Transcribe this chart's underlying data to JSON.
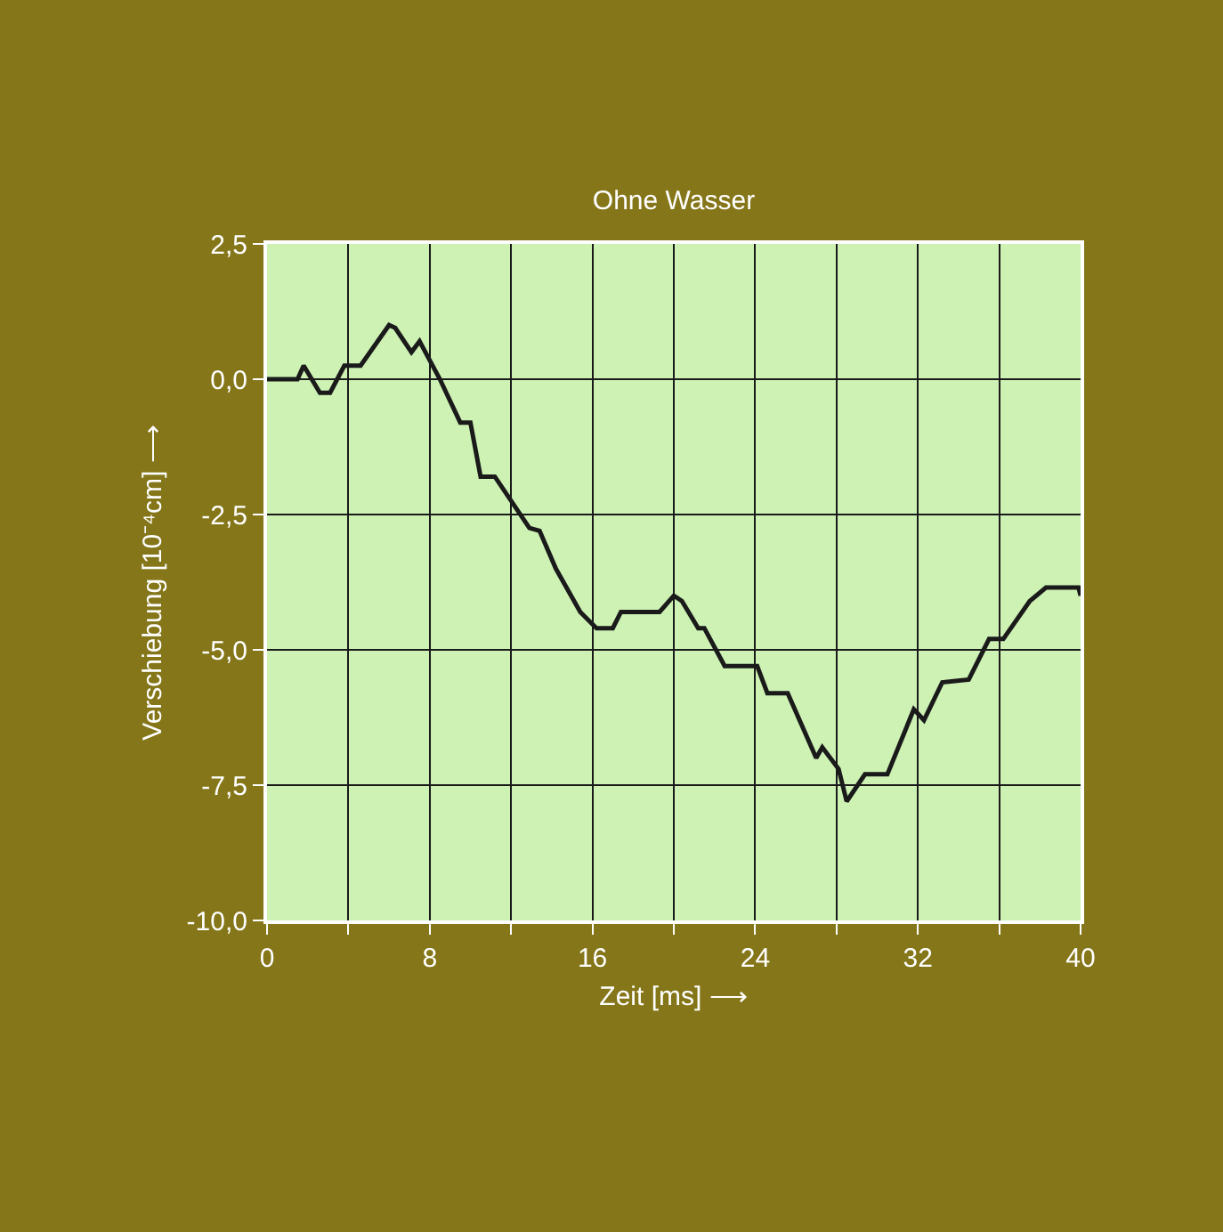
{
  "chart_data": {
    "type": "line",
    "title": "Ohne Wasser",
    "xlabel": "Zeit [ms] ⟶",
    "ylabel": "Verschiebung [10⁻⁴cm] ⟶",
    "x": [
      0,
      1.5,
      1.8,
      2.6,
      3.1,
      3.8,
      4.6,
      6.0,
      6.3,
      7.1,
      7.5,
      8.5,
      9.5,
      10.0,
      10.5,
      11.2,
      12.9,
      13.4,
      14.2,
      15.4,
      16.2,
      17.0,
      17.4,
      19.3,
      20.0,
      20.4,
      21.2,
      21.5,
      22.5,
      24.1,
      24.6,
      25.6,
      27.0,
      27.3,
      28.1,
      28.5,
      29.4,
      30.5,
      31.8,
      32.3,
      33.2,
      34.5,
      35.5,
      36.2,
      37.5,
      38.3,
      39.9,
      40
    ],
    "series": [
      {
        "color": "#1a1a1a",
        "values": [
          0,
          0,
          0.25,
          -0.25,
          -0.25,
          0.25,
          0.25,
          1.0,
          0.95,
          0.5,
          0.7,
          0,
          -0.8,
          -0.8,
          -1.8,
          -1.8,
          -2.75,
          -2.8,
          -3.5,
          -4.3,
          -4.6,
          -4.6,
          -4.3,
          -4.3,
          -4.0,
          -4.1,
          -4.6,
          -4.6,
          -5.3,
          -5.3,
          -5.8,
          -5.8,
          -7.0,
          -6.8,
          -7.2,
          -7.8,
          -7.3,
          -7.3,
          -6.1,
          -6.3,
          -5.6,
          -5.55,
          -4.8,
          -4.8,
          -4.1,
          -3.85,
          -3.85,
          -4.0
        ]
      }
    ],
    "xlim": [
      0,
      40
    ],
    "ylim": [
      -10,
      2.5
    ],
    "xticks": [
      0,
      {
        "value": 4,
        "label": null
      },
      8,
      {
        "value": 12,
        "label": null
      },
      16,
      {
        "value": 20,
        "label": null
      },
      24,
      {
        "value": 28,
        "label": null
      },
      32,
      {
        "value": 36,
        "label": null
      },
      40
    ],
    "yticks": [
      {
        "value": 2.5,
        "label": "2,5"
      },
      {
        "value": 0,
        "label": "0,0"
      },
      {
        "value": -2.5,
        "label": "-2,5"
      },
      {
        "value": -5,
        "label": "-5,0"
      },
      {
        "value": -7.5,
        "label": "-7,5"
      },
      {
        "value": -10,
        "label": "-10,0"
      }
    ],
    "grid": true,
    "marker": "none",
    "line_style": "solid"
  }
}
